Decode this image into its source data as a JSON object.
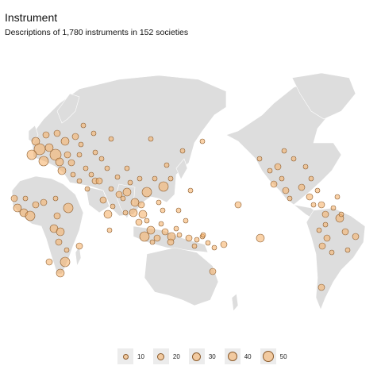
{
  "header": {
    "title": "Instrument",
    "subtitle": "Descriptions of 1,780 instruments in 152 societies"
  },
  "colors": {
    "land": "#dddddd",
    "point_fill": "#f7b46e",
    "point_stroke": "#8a5a2b",
    "background": "#ffffff"
  },
  "legend": {
    "items": [
      {
        "label": "10",
        "value": 10
      },
      {
        "label": "20",
        "value": 20
      },
      {
        "label": "30",
        "value": 30
      },
      {
        "label": "40",
        "value": 40
      },
      {
        "label": "50",
        "value": 50
      }
    ]
  }
}
